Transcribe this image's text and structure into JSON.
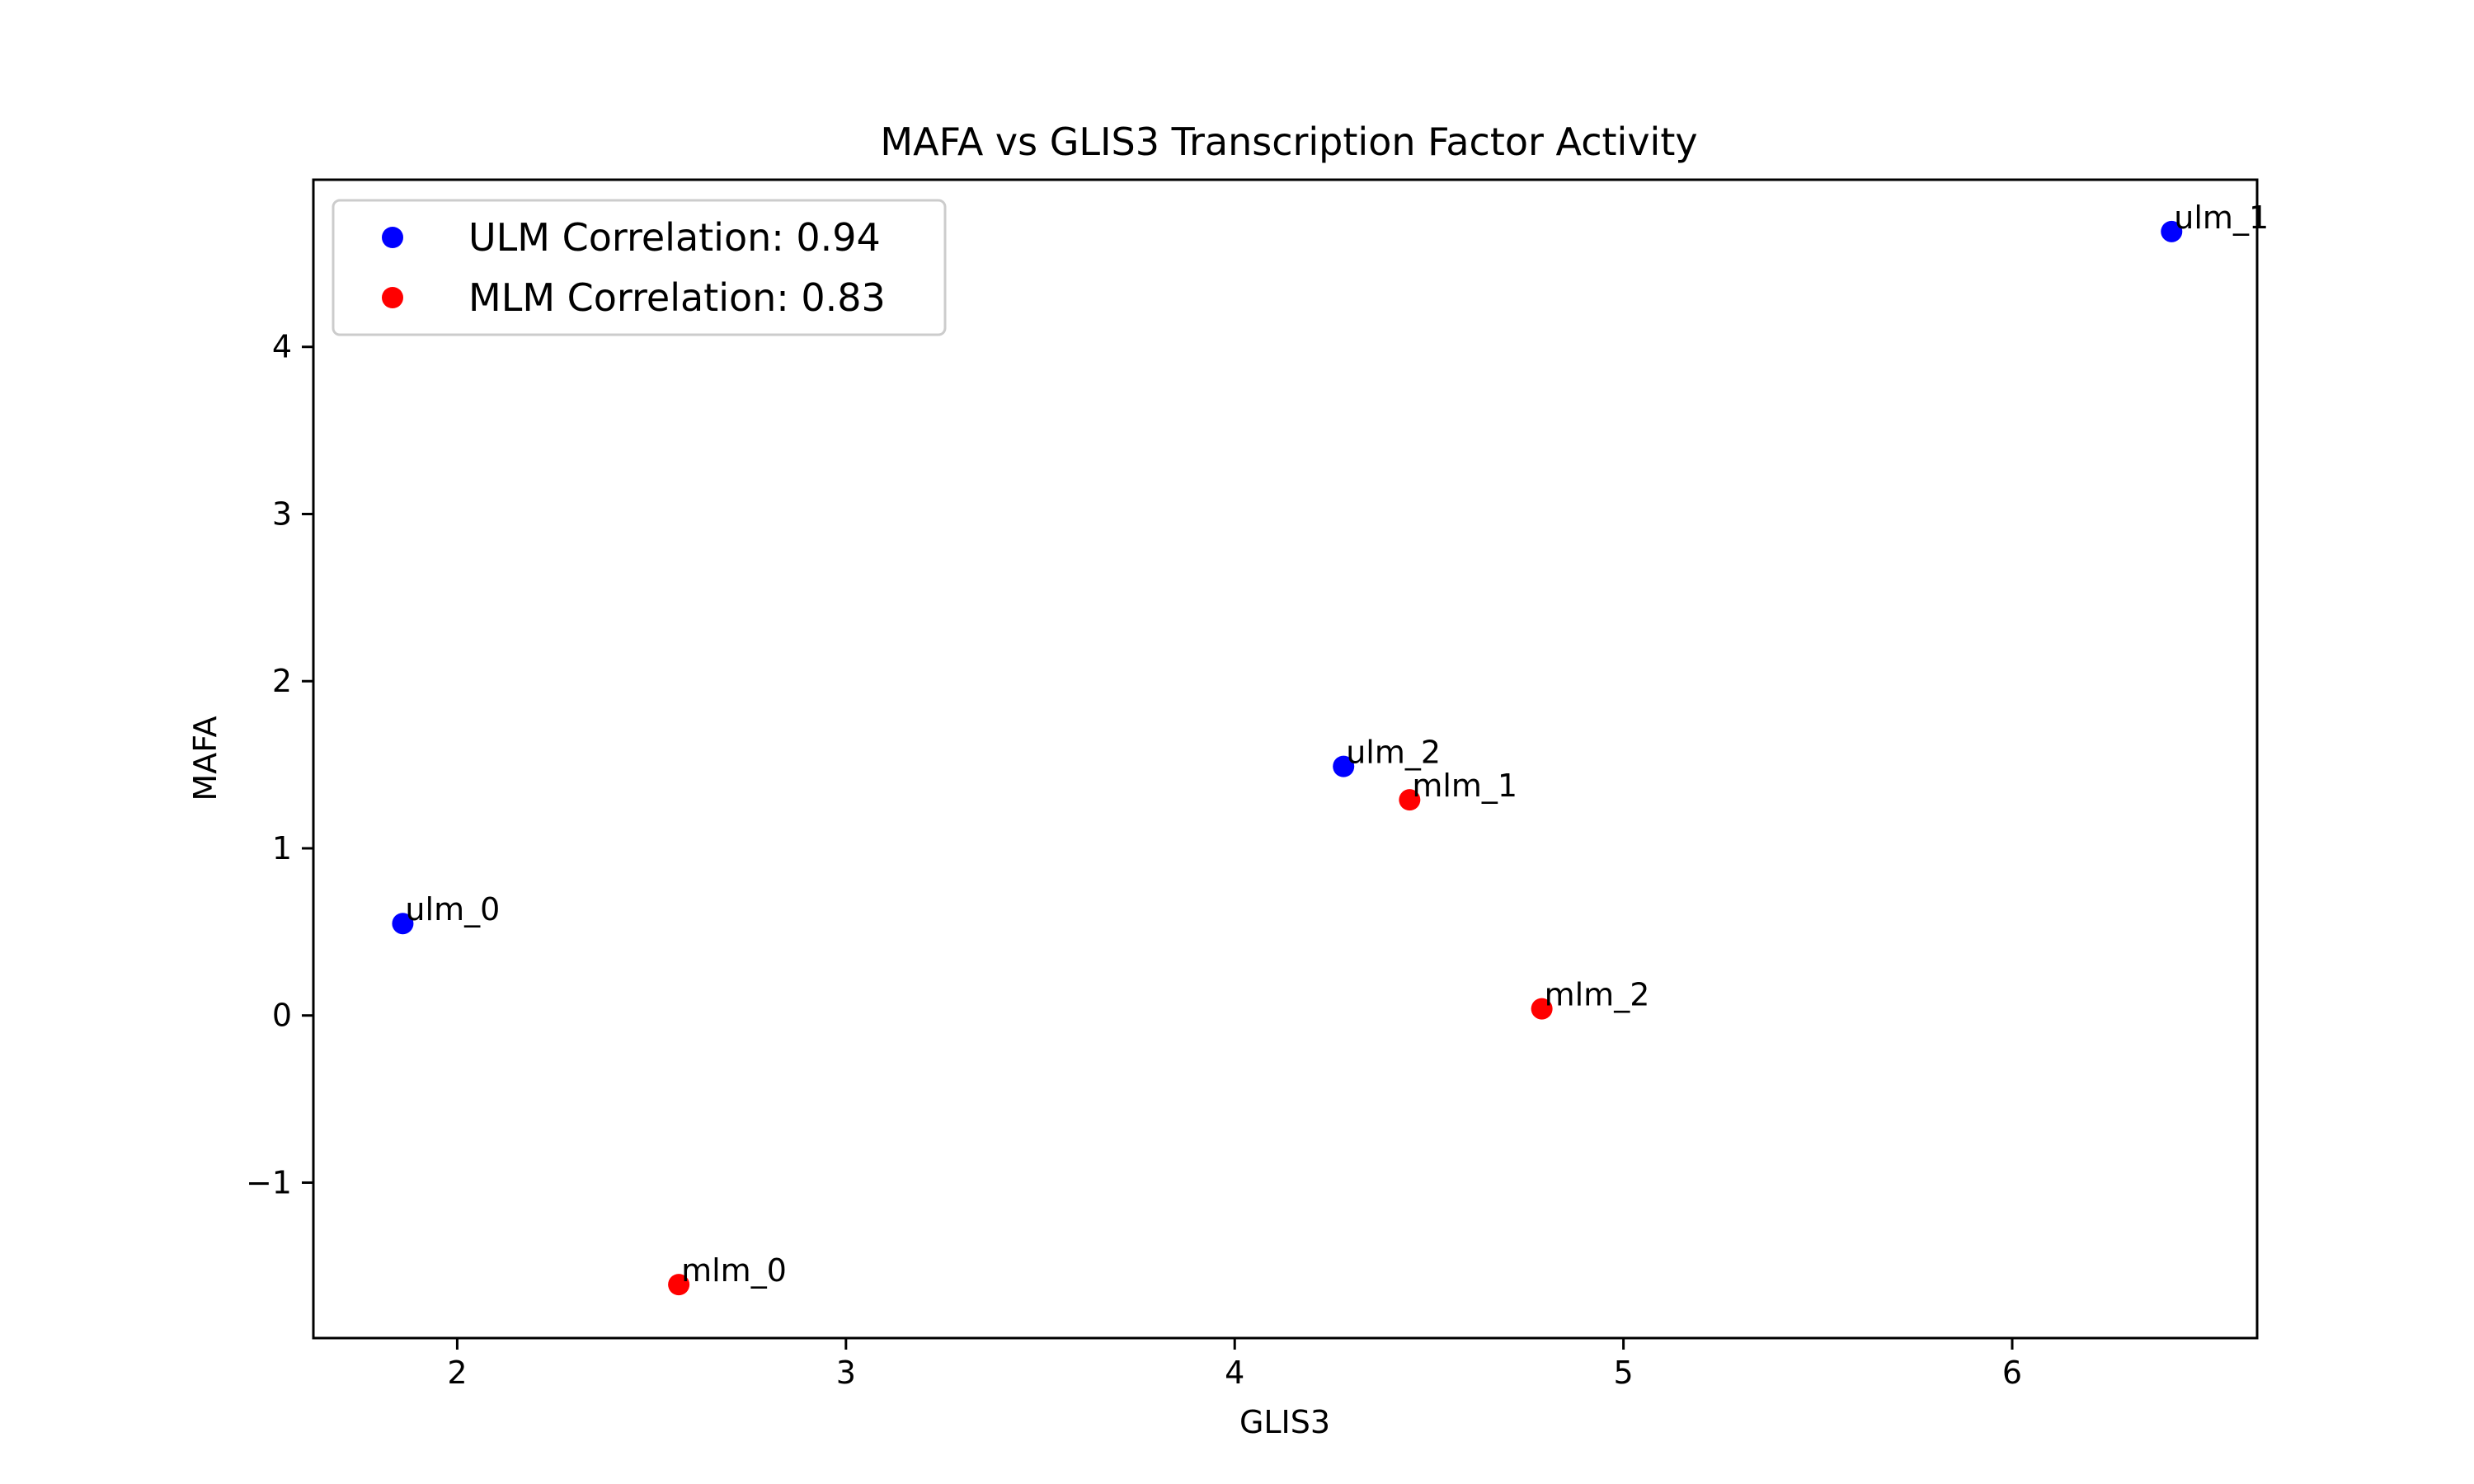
{
  "chart_data": {
    "type": "scatter",
    "title": "MAFA vs GLIS3 Transcription Factor Activity",
    "xlabel": "GLIS3",
    "ylabel": "MAFA",
    "xlim": [
      1.63,
      6.63
    ],
    "ylim": [
      -1.93,
      5.0
    ],
    "xticks": [
      2,
      3,
      4,
      5,
      6
    ],
    "xtick_labels": [
      "2",
      "3",
      "4",
      "5",
      "6"
    ],
    "yticks": [
      -1,
      0,
      1,
      2,
      3,
      4
    ],
    "ytick_labels": [
      "−1",
      "0",
      "1",
      "2",
      "3",
      "4"
    ],
    "grid": false,
    "legend_position": "top-left",
    "series": [
      {
        "name": "ULM Correlation: 0.94",
        "color": "#0000ff",
        "points": [
          {
            "label": "ulm_0",
            "x": 1.86,
            "y": 0.55
          },
          {
            "label": "ulm_1",
            "x": 6.41,
            "y": 4.69
          },
          {
            "label": "ulm_2",
            "x": 4.28,
            "y": 1.49
          }
        ]
      },
      {
        "name": "MLM Correlation: 0.83",
        "color": "#ff0000",
        "points": [
          {
            "label": "mlm_0",
            "x": 2.57,
            "y": -1.61
          },
          {
            "label": "mlm_1",
            "x": 4.45,
            "y": 1.29
          },
          {
            "label": "mlm_2",
            "x": 4.79,
            "y": 0.04
          }
        ]
      }
    ]
  }
}
